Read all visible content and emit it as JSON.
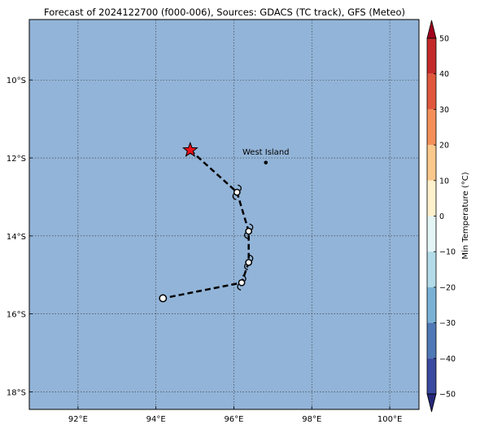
{
  "title": "Forecast of 2024122700 (f000-006), Sources: GDACS (TC track), GFS (Meteo)",
  "map": {
    "ocean_color": "#92b4d8",
    "lon_range": [
      90.75,
      100.75
    ],
    "lat_range": [
      -18.45,
      -8.45
    ],
    "x_ticks": [
      {
        "value": 92,
        "label": "92°E"
      },
      {
        "value": 94,
        "label": "94°E"
      },
      {
        "value": 96,
        "label": "96°E"
      },
      {
        "value": 98,
        "label": "98°E"
      },
      {
        "value": 100,
        "label": "100°E"
      }
    ],
    "y_ticks": [
      {
        "value": -10,
        "label": "10°S"
      },
      {
        "value": -12,
        "label": "12°S"
      },
      {
        "value": -14,
        "label": "14°S"
      },
      {
        "value": -16,
        "label": "16°S"
      },
      {
        "value": -18,
        "label": "18°S"
      }
    ],
    "grid": true
  },
  "track": {
    "current_position": {
      "lon": 94.88,
      "lat": -11.8,
      "icon": "red-star-icon"
    },
    "points": [
      {
        "lon": 94.88,
        "lat": -11.8
      },
      {
        "lon": 96.08,
        "lat": -12.88
      },
      {
        "lon": 96.38,
        "lat": -13.88
      },
      {
        "lon": 96.38,
        "lat": -14.68
      },
      {
        "lon": 96.2,
        "lat": -15.2
      },
      {
        "lon": 94.18,
        "lat": -15.6
      }
    ],
    "storm_symbols": [
      {
        "lon": 96.08,
        "lat": -12.88
      },
      {
        "lon": 96.38,
        "lat": -13.88
      },
      {
        "lon": 96.38,
        "lat": -14.68
      },
      {
        "lon": 96.2,
        "lat": -15.2
      }
    ],
    "end_marker": {
      "lon": 94.18,
      "lat": -15.6
    }
  },
  "place": {
    "name": "West Island",
    "lon": 96.82,
    "lat": -12.12
  },
  "colorbar": {
    "label": "Min Temperature (°C)",
    "ticks": [
      "50",
      "40",
      "30",
      "20",
      "10",
      "0",
      "−10",
      "−20",
      "−30",
      "−40",
      "−50"
    ],
    "colors": [
      "#a0001e",
      "#c42a2a",
      "#e0583c",
      "#f58f5a",
      "#fbc88c",
      "#fff1cc",
      "#e4f5f5",
      "#b3dce8",
      "#7ab2d5",
      "#4f79b6",
      "#3a4aa0",
      "#262878"
    ]
  }
}
